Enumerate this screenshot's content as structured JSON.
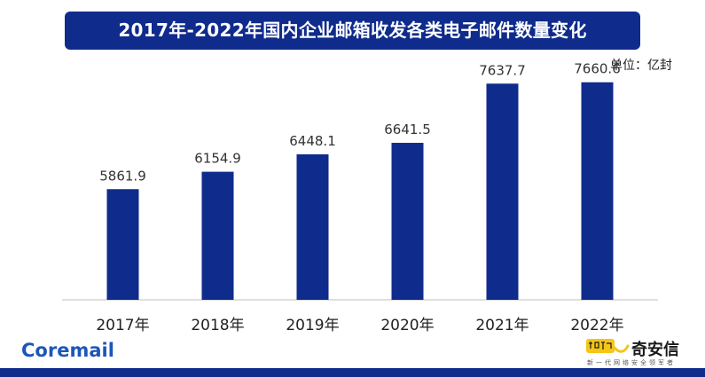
{
  "chart_data": {
    "type": "bar",
    "title": "2017年-2022年国内企业邮箱收发各类电子邮件数量变化",
    "unit_label": "单位：亿封",
    "categories": [
      "2017年",
      "2018年",
      "2019年",
      "2020年",
      "2021年",
      "2022年"
    ],
    "values": [
      5861.9,
      6154.9,
      6448.1,
      6641.5,
      7637.7,
      7660.6
    ],
    "value_labels": [
      "5861.9",
      "6154.9",
      "6448.1",
      "6641.5",
      "7637.7",
      "7660.6"
    ],
    "ylim": [
      4000,
      8000
    ],
    "grid": false,
    "legend": "none",
    "bar_color": "#0f2b8c"
  },
  "branding": {
    "left_logo": "Coremail",
    "right_logo_name": "奇安信",
    "right_logo_slogan": "新一代网络安全领军者"
  },
  "colors": {
    "title_background": "#0f2b8c",
    "title_text": "#ffffff",
    "coremail_blue": "#1c57b8",
    "qax_yellow": "#f5c518"
  }
}
